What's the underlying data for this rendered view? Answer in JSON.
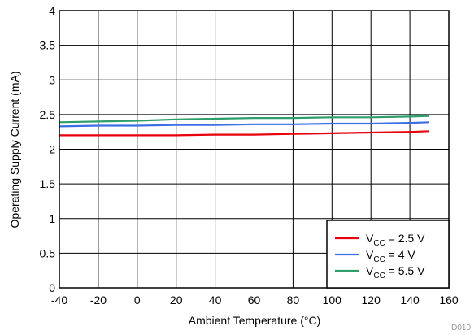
{
  "chart_data": {
    "type": "line",
    "xlabel": "Ambient Temperature (°C)",
    "ylabel": "Operating Supply Current (mA)",
    "xlim": [
      -40,
      160
    ],
    "ylim": [
      0,
      4
    ],
    "x_ticks": [
      "-40",
      "-20",
      "0",
      "20",
      "40",
      "60",
      "80",
      "100",
      "120",
      "140",
      "160"
    ],
    "y_ticks": [
      "0",
      "0.5",
      "1",
      "1.5",
      "2",
      "2.5",
      "3",
      "3.5",
      "4"
    ],
    "grid": true,
    "legend_position": "bottom-right",
    "x": [
      -40,
      -20,
      0,
      20,
      40,
      60,
      80,
      100,
      120,
      140,
      150
    ],
    "series": [
      {
        "name_main": "V",
        "name_sub": "CC",
        "name_rest": " = 2.5 V",
        "color": "#e8000b",
        "values": [
          2.2,
          2.2,
          2.2,
          2.2,
          2.21,
          2.21,
          2.22,
          2.23,
          2.24,
          2.25,
          2.26
        ]
      },
      {
        "name_main": "V",
        "name_sub": "CC",
        "name_rest": " = 4 V",
        "color": "#3a6fe8",
        "values": [
          2.33,
          2.34,
          2.34,
          2.35,
          2.35,
          2.36,
          2.36,
          2.37,
          2.37,
          2.38,
          2.39
        ]
      },
      {
        "name_main": "V",
        "name_sub": "CC",
        "name_rest": " = 5.5 V",
        "color": "#2e9e6b",
        "values": [
          2.39,
          2.4,
          2.41,
          2.43,
          2.44,
          2.45,
          2.45,
          2.46,
          2.46,
          2.47,
          2.48
        ]
      }
    ]
  },
  "figure_id": "D010"
}
